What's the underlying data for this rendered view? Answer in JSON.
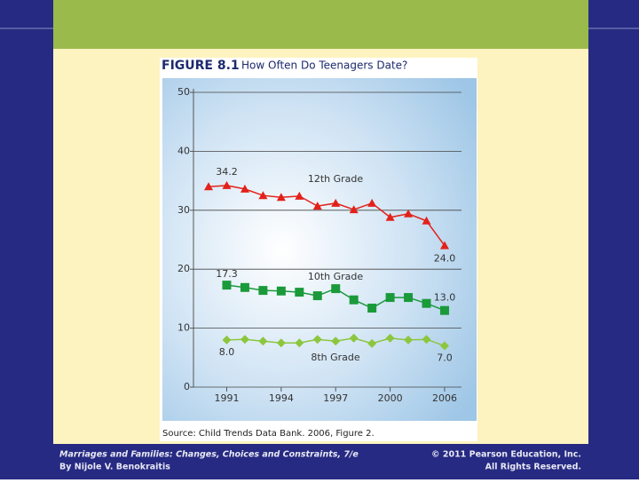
{
  "chart_data": {
    "type": "line",
    "title": "FIGURE 8.1",
    "subtitle": "How Often Do Teenagers Date?",
    "source": "Source: Child Trends Data Bank. 2006, Figure 2.",
    "categories": [
      null,
      "1991",
      null,
      null,
      "1994",
      null,
      null,
      "1997",
      null,
      null,
      "2000",
      null,
      null,
      "2006"
    ],
    "ylim": [
      0,
      50
    ],
    "yticks": [
      0,
      10,
      20,
      30,
      40,
      50
    ],
    "grid": true,
    "series": [
      {
        "name": "12th Grade",
        "color": "#e32119",
        "marker": "triangle",
        "values": [
          34.0,
          34.2,
          33.6,
          32.5,
          32.2,
          32.4,
          30.7,
          31.2,
          30.1,
          31.2,
          28.8,
          29.4,
          28.2,
          24.0
        ],
        "value_labels": [
          null,
          "34.2",
          null,
          null,
          null,
          null,
          null,
          null,
          null,
          null,
          null,
          null,
          null,
          "24.0"
        ]
      },
      {
        "name": "10th Grade",
        "color": "#1a9a3a",
        "marker": "square",
        "values": [
          null,
          17.3,
          16.9,
          16.4,
          16.3,
          16.1,
          15.5,
          16.7,
          14.8,
          13.4,
          15.2,
          15.2,
          14.2,
          13.0
        ],
        "value_labels": [
          null,
          "17.3",
          null,
          null,
          null,
          null,
          null,
          null,
          null,
          null,
          null,
          null,
          null,
          "13.0"
        ]
      },
      {
        "name": "8th Grade",
        "color": "#8cc63f",
        "marker": "diamond",
        "values": [
          null,
          8.0,
          8.1,
          7.8,
          7.5,
          7.5,
          8.1,
          7.8,
          8.3,
          7.4,
          8.3,
          8.0,
          8.1,
          7.0
        ],
        "value_labels": [
          null,
          "8.0",
          null,
          null,
          null,
          null,
          null,
          null,
          null,
          null,
          null,
          null,
          null,
          "7.0"
        ]
      }
    ]
  },
  "footer": {
    "book": "Marriages and Families: Changes, Choices and Constraints, 7/e",
    "author": "By Nijole V. Benokraitis",
    "copyright": "© 2011 Pearson Education, Inc.",
    "rights": "All Rights Reserved."
  }
}
